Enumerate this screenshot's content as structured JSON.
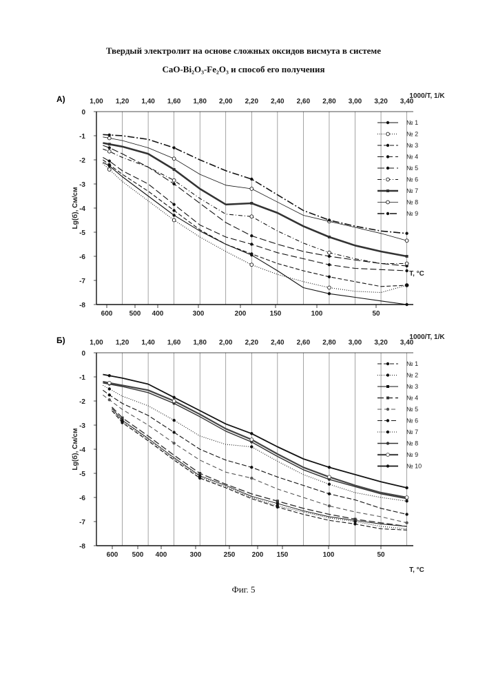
{
  "header": {
    "title_line1": "Твердый электролит на основе сложных оксидов висмута в системе",
    "title_line2": "CaO-Bi₂O₃-Fe₂O₃  и способ его получения"
  },
  "figure_caption": "Фиг. 5",
  "chart_data": [
    {
      "panel_label": "А)",
      "type": "line",
      "x_label": "1000/T, 1/K",
      "y_label": "Lg(б), См/см",
      "t_label": "T, °C",
      "xlim": [
        1.0,
        3.45
      ],
      "ylim": [
        -8,
        0
      ],
      "x_ticks": [
        "1,00",
        "1,20",
        "1,40",
        "1,60",
        "1,80",
        "2,00",
        "2,20",
        "2,40",
        "2,60",
        "2,80",
        "3,00",
        "3,20",
        "3,40"
      ],
      "y_ticks": [
        "0",
        "-1",
        "-2",
        "-3",
        "-4",
        "-5",
        "-6",
        "-7",
        "-8"
      ],
      "t_ticks": [
        "600",
        "500",
        "400",
        "300",
        "200",
        "150",
        "100",
        "50"
      ],
      "series": [
        {
          "name": "№ 1",
          "color": "#111111",
          "dash": "",
          "marker": "dot",
          "x": [
            1.05,
            1.1,
            1.2,
            1.4,
            1.6,
            1.8,
            2.0,
            2.2,
            2.4,
            2.6,
            2.8,
            3.0,
            3.2,
            3.4
          ],
          "y": [
            -2.1,
            -2.25,
            -2.7,
            -3.5,
            -4.3,
            -4.95,
            -5.5,
            -5.95,
            -6.6,
            -7.3,
            -7.55,
            -7.7,
            -7.85,
            -8.0
          ]
        },
        {
          "name": "№ 2",
          "color": "#111111",
          "dash": "1,2",
          "marker": "open",
          "x": [
            1.05,
            1.1,
            1.2,
            1.4,
            1.6,
            1.8,
            2.0,
            2.2,
            2.4,
            2.6,
            2.8,
            3.0,
            3.2,
            3.4
          ],
          "y": [
            -2.15,
            -2.4,
            -2.9,
            -3.7,
            -4.5,
            -5.2,
            -5.8,
            -6.35,
            -6.75,
            -7.05,
            -7.3,
            -7.45,
            -7.5,
            -7.2
          ]
        },
        {
          "name": "№ 3",
          "color": "#111111",
          "dash": "6,3",
          "marker": "dot",
          "x": [
            1.05,
            1.1,
            1.2,
            1.4,
            1.6,
            1.8,
            2.0,
            2.2,
            2.4,
            2.6,
            2.8,
            3.0,
            3.2,
            3.4
          ],
          "y": [
            -2.0,
            -2.2,
            -2.6,
            -3.3,
            -4.1,
            -4.9,
            -5.5,
            -5.9,
            -6.3,
            -6.6,
            -6.85,
            -7.05,
            -7.25,
            -7.2
          ]
        },
        {
          "name": "№ 4",
          "color": "#111111",
          "dash": "9,4",
          "marker": "dot",
          "x": [
            1.05,
            1.1,
            1.2,
            1.4,
            1.6,
            1.8,
            2.0,
            2.2,
            2.4,
            2.6,
            2.8,
            3.0,
            3.2,
            3.4
          ],
          "y": [
            -1.9,
            -2.05,
            -2.45,
            -3.0,
            -3.85,
            -4.7,
            -5.2,
            -5.5,
            -5.85,
            -6.1,
            -6.35,
            -6.5,
            -6.55,
            -6.6
          ]
        },
        {
          "name": "№ 5",
          "color": "#111111",
          "dash": "10,4",
          "marker": "dot",
          "x": [
            1.05,
            1.1,
            1.2,
            1.4,
            1.6,
            1.8,
            2.0,
            2.2,
            2.4,
            2.6,
            2.8,
            3.0,
            3.2,
            3.4
          ],
          "y": [
            -1.4,
            -1.5,
            -1.75,
            -2.3,
            -3.0,
            -3.8,
            -4.6,
            -5.15,
            -5.5,
            -5.8,
            -6.0,
            -6.15,
            -6.3,
            -6.4
          ]
        },
        {
          "name": "№ 6",
          "color": "#111111",
          "dash": "6,3,1,3",
          "marker": "open",
          "x": [
            1.05,
            1.1,
            1.2,
            1.4,
            1.6,
            1.8,
            2.0,
            2.2,
            2.4,
            2.6,
            2.8,
            3.0,
            3.2,
            3.4
          ],
          "y": [
            -1.55,
            -1.65,
            -1.9,
            -2.3,
            -2.85,
            -3.6,
            -4.25,
            -4.35,
            -4.95,
            -5.45,
            -5.85,
            -6.1,
            -6.3,
            -6.3
          ]
        },
        {
          "name": "№ 7",
          "color": "#333333",
          "dash": "",
          "marker": "bar",
          "width": 2.6,
          "x": [
            1.05,
            1.1,
            1.2,
            1.4,
            1.6,
            1.8,
            2.0,
            2.2,
            2.4,
            2.6,
            2.8,
            3.0,
            3.2,
            3.4
          ],
          "y": [
            -1.3,
            -1.35,
            -1.45,
            -1.75,
            -2.4,
            -3.2,
            -3.85,
            -3.8,
            -4.2,
            -4.75,
            -5.2,
            -5.55,
            -5.8,
            -6.0
          ]
        },
        {
          "name": "№ 8",
          "color": "#111111",
          "dash": "",
          "marker": "open",
          "width": 0.8,
          "x": [
            1.05,
            1.1,
            1.2,
            1.4,
            1.6,
            1.8,
            2.0,
            2.2,
            2.4,
            2.6,
            2.8,
            3.0,
            3.2,
            3.4
          ],
          "y": [
            -1.05,
            -1.1,
            -1.2,
            -1.5,
            -1.95,
            -2.6,
            -3.05,
            -3.2,
            -3.75,
            -4.3,
            -4.55,
            -4.8,
            -5.05,
            -5.35
          ]
        },
        {
          "name": "№ 9",
          "color": "#111111",
          "dash": "10,3,2,3",
          "marker": "dot",
          "width": 1.6,
          "x": [
            1.05,
            1.1,
            1.2,
            1.4,
            1.6,
            1.8,
            2.0,
            2.2,
            2.4,
            2.6,
            2.8,
            3.0,
            3.2,
            3.4
          ],
          "y": [
            -0.95,
            -0.97,
            -1.0,
            -1.15,
            -1.5,
            -2.0,
            -2.45,
            -2.8,
            -3.45,
            -4.1,
            -4.5,
            -4.75,
            -4.95,
            -5.05
          ]
        }
      ]
    },
    {
      "panel_label": "Б)",
      "type": "line",
      "x_label": "1000/T, 1/K",
      "y_label": "Lg(б), См/см",
      "t_label": "T, °C",
      "xlim": [
        1.0,
        3.45
      ],
      "ylim": [
        -8,
        0
      ],
      "x_ticks": [
        "1,00",
        "1,20",
        "1,40",
        "1,60",
        "1,80",
        "2,00",
        "2,20",
        "2,40",
        "2,60",
        "2,80",
        "3,00",
        "3,20",
        "3,40"
      ],
      "y_ticks": [
        "0",
        "-1",
        "-2",
        "-3",
        "-4",
        "-5",
        "-6",
        "-7",
        "-8"
      ],
      "t_ticks": [
        "600",
        "500",
        "400",
        "300",
        "250",
        "200",
        "150",
        "100",
        "50"
      ],
      "series": [
        {
          "name": "№ 1",
          "color": "#111111",
          "dash": "6,3",
          "marker": "dot",
          "x": [
            1.12,
            1.2,
            1.4,
            1.6,
            1.8,
            2.0,
            2.2,
            2.4,
            2.6,
            2.8,
            3.0,
            3.2,
            3.4
          ],
          "y": [
            -2.4,
            -2.9,
            -3.65,
            -4.45,
            -5.2,
            -5.6,
            -6.05,
            -6.4,
            -6.7,
            -6.95,
            -7.1,
            -7.3,
            -7.35
          ]
        },
        {
          "name": "№ 2",
          "color": "#111111",
          "dash": "1,2",
          "marker": "dot",
          "x": [
            1.12,
            1.2,
            1.4,
            1.6,
            1.8,
            2.0,
            2.2,
            2.4,
            2.6,
            2.8,
            3.0,
            3.2,
            3.4
          ],
          "y": [
            -2.35,
            -2.85,
            -3.6,
            -4.4,
            -5.15,
            -5.55,
            -6.0,
            -6.35,
            -6.6,
            -6.85,
            -7.0,
            -7.2,
            -7.3
          ]
        },
        {
          "name": "№ 3",
          "color": "#111111",
          "dash": "",
          "marker": "bar",
          "width": 0.9,
          "x": [
            1.12,
            1.2,
            1.4,
            1.6,
            1.8,
            2.0,
            2.2,
            2.4,
            2.6,
            2.8,
            3.0,
            3.2,
            3.4
          ],
          "y": [
            -2.3,
            -2.8,
            -3.55,
            -4.35,
            -5.1,
            -5.5,
            -5.95,
            -6.25,
            -6.55,
            -6.8,
            -6.95,
            -7.1,
            -7.2
          ]
        },
        {
          "name": "№ 4",
          "color": "#333333",
          "dash": "9,4",
          "marker": "bar",
          "width": 1.4,
          "x": [
            1.12,
            1.2,
            1.4,
            1.6,
            1.8,
            2.0,
            2.2,
            2.4,
            2.6,
            2.8,
            3.0,
            3.2,
            3.4
          ],
          "y": [
            -2.25,
            -2.7,
            -3.45,
            -4.25,
            -5.0,
            -5.45,
            -5.85,
            -6.15,
            -6.45,
            -6.7,
            -6.9,
            -7.05,
            -7.2
          ]
        },
        {
          "name": "№ 5",
          "color": "#555555",
          "dash": "6,4",
          "marker": "dot",
          "x": [
            1.05,
            1.1,
            1.2,
            1.4,
            1.6,
            1.8,
            2.0,
            2.2,
            2.4,
            2.6,
            2.8,
            3.0,
            3.2,
            3.4
          ],
          "y": [
            -1.75,
            -1.95,
            -2.35,
            -3.0,
            -3.75,
            -4.45,
            -4.95,
            -5.2,
            -5.65,
            -6.0,
            -6.35,
            -6.6,
            -6.8,
            -7.05
          ]
        },
        {
          "name": "№ 6",
          "color": "#111111",
          "dash": "7,3",
          "marker": "dot",
          "x": [
            1.05,
            1.1,
            1.2,
            1.4,
            1.6,
            1.8,
            2.0,
            2.2,
            2.4,
            2.6,
            2.8,
            3.0,
            3.2,
            3.4
          ],
          "y": [
            -1.55,
            -1.75,
            -2.1,
            -2.6,
            -3.3,
            -4.0,
            -4.45,
            -4.75,
            -5.15,
            -5.5,
            -5.85,
            -6.1,
            -6.45,
            -6.7
          ]
        },
        {
          "name": "№ 7",
          "color": "#111111",
          "dash": "1,2",
          "marker": "dot",
          "x": [
            1.05,
            1.1,
            1.2,
            1.4,
            1.6,
            1.8,
            2.0,
            2.2,
            2.4,
            2.6,
            2.8,
            3.0,
            3.2,
            3.4
          ],
          "y": [
            -1.35,
            -1.5,
            -1.8,
            -2.2,
            -2.8,
            -3.45,
            -3.8,
            -3.9,
            -4.5,
            -5.05,
            -5.45,
            -5.8,
            -6.0,
            -6.15
          ]
        },
        {
          "name": "№ 8",
          "color": "#333333",
          "dash": "",
          "marker": "dot",
          "width": 1.4,
          "x": [
            1.05,
            1.1,
            1.2,
            1.4,
            1.6,
            1.8,
            2.0,
            2.2,
            2.4,
            2.6,
            2.8,
            3.0,
            3.2,
            3.4
          ],
          "y": [
            -1.25,
            -1.3,
            -1.4,
            -1.65,
            -2.1,
            -2.65,
            -3.25,
            -3.7,
            -4.3,
            -4.85,
            -5.25,
            -5.55,
            -5.85,
            -6.05
          ]
        },
        {
          "name": "№ 9",
          "color": "#444444",
          "dash": "",
          "marker": "open",
          "width": 2.2,
          "x": [
            1.05,
            1.1,
            1.2,
            1.4,
            1.6,
            1.8,
            2.0,
            2.2,
            2.4,
            2.6,
            2.8,
            3.0,
            3.2,
            3.4
          ],
          "y": [
            -1.2,
            -1.25,
            -1.35,
            -1.55,
            -2.0,
            -2.55,
            -3.15,
            -3.6,
            -4.2,
            -4.75,
            -5.15,
            -5.5,
            -5.8,
            -6.0
          ]
        },
        {
          "name": "№ 10",
          "color": "#111111",
          "dash": "",
          "marker": "dot",
          "width": 1.8,
          "x": [
            1.05,
            1.1,
            1.2,
            1.4,
            1.6,
            1.8,
            2.0,
            2.2,
            2.4,
            2.6,
            2.8,
            3.0,
            3.2,
            3.4
          ],
          "y": [
            -0.9,
            -0.95,
            -1.05,
            -1.3,
            -1.85,
            -2.4,
            -2.95,
            -3.35,
            -3.9,
            -4.4,
            -4.75,
            -5.05,
            -5.35,
            -5.6
          ]
        }
      ]
    }
  ]
}
